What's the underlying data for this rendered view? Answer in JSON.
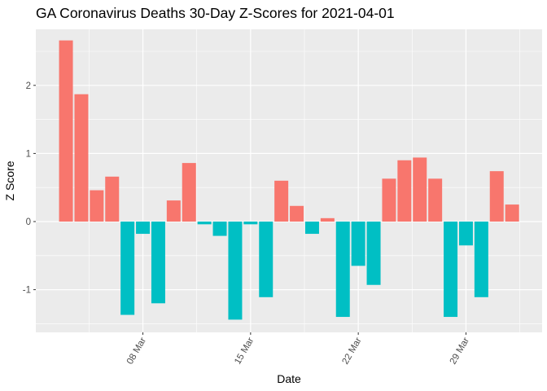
{
  "chart_data": {
    "type": "bar",
    "title": "GA Coronavirus Deaths 30-Day Z-Scores for 2021-04-01",
    "xlabel": "Date",
    "ylabel": "Z Score",
    "ylim": [
      -1.6,
      2.8
    ],
    "y_ticks": [
      -1,
      0,
      1,
      2
    ],
    "x_ticks": [
      {
        "day": 8,
        "label": "08 Mar"
      },
      {
        "day": 15,
        "label": "15 Mar"
      },
      {
        "day": 22,
        "label": "22 Mar"
      },
      {
        "day": 29,
        "label": "29 Mar"
      }
    ],
    "grid": true,
    "legend": "none",
    "colors": {
      "positive": "#F8766D",
      "negative": "#00BFC4",
      "panel": "#EBEBEB",
      "grid": "#FFFFFF"
    },
    "days": [
      3,
      4,
      5,
      6,
      7,
      8,
      9,
      10,
      11,
      12,
      13,
      14,
      15,
      16,
      17,
      18,
      19,
      20,
      21,
      22,
      23,
      24,
      25,
      26,
      27,
      28,
      29,
      30,
      31,
      32,
      33
    ],
    "categories": [
      "03 Mar",
      "04 Mar",
      "05 Mar",
      "06 Mar",
      "07 Mar",
      "08 Mar",
      "09 Mar",
      "10 Mar",
      "11 Mar",
      "12 Mar",
      "13 Mar",
      "14 Mar",
      "15 Mar",
      "16 Mar",
      "17 Mar",
      "18 Mar",
      "19 Mar",
      "20 Mar",
      "21 Mar",
      "22 Mar",
      "23 Mar",
      "24 Mar",
      "25 Mar",
      "26 Mar",
      "27 Mar",
      "28 Mar",
      "29 Mar",
      "30 Mar",
      "31 Mar",
      "01 Apr",
      "02 Apr"
    ],
    "values": [
      2.66,
      1.87,
      0.46,
      0.66,
      -1.37,
      -0.18,
      -1.2,
      0.31,
      0.86,
      -0.04,
      -0.21,
      -1.44,
      -0.04,
      -1.11,
      0.6,
      0.23,
      -0.18,
      0.05,
      -1.4,
      -0.65,
      -0.93,
      0.63,
      0.9,
      0.94,
      0.63,
      -1.4,
      -0.35,
      -1.11,
      0.74,
      0.25,
      0.0
    ]
  }
}
